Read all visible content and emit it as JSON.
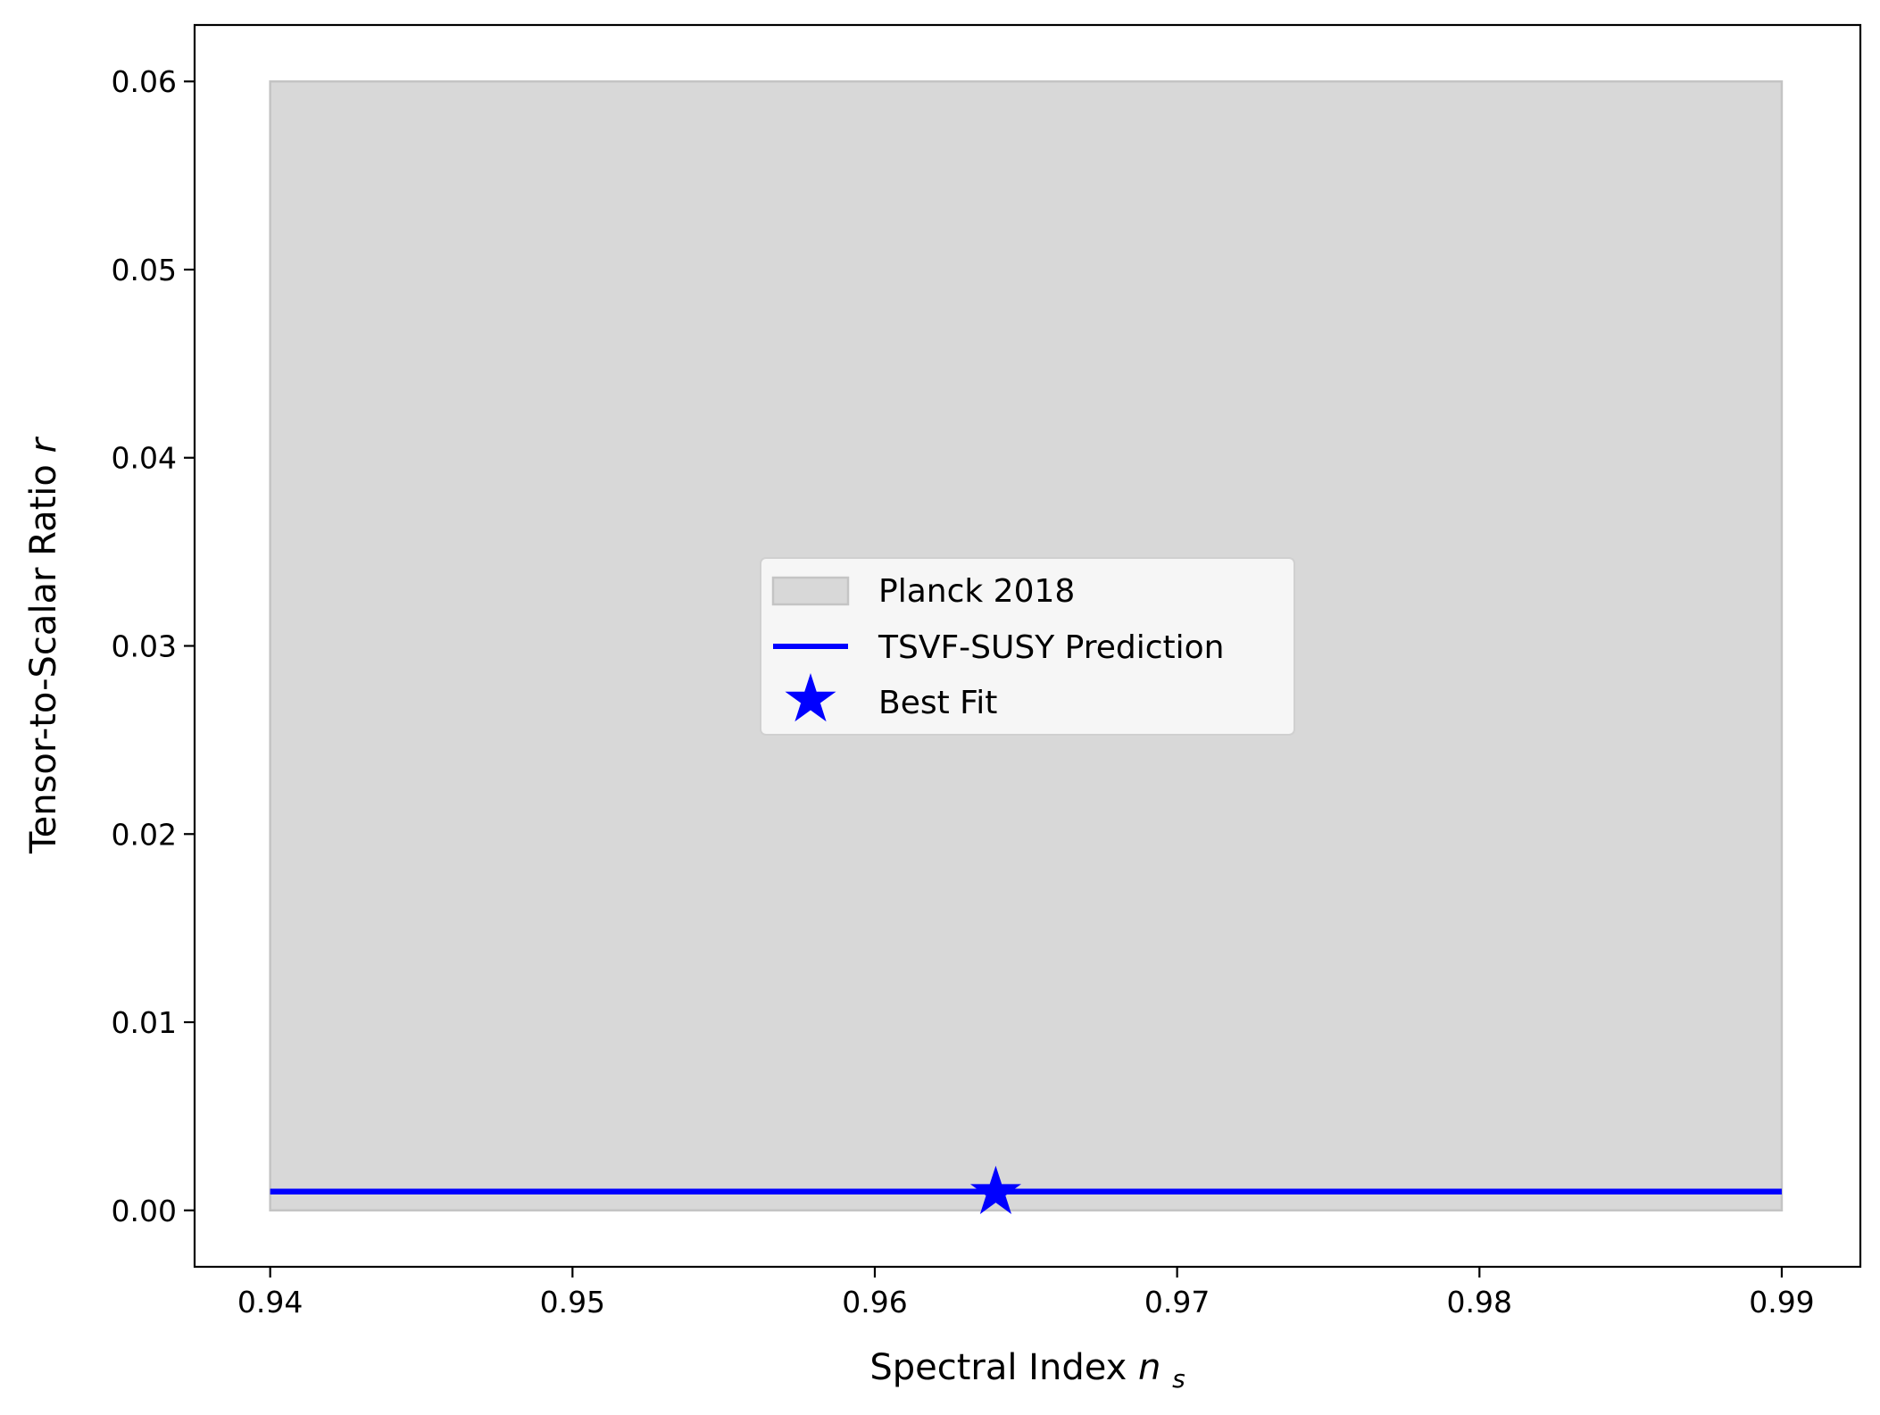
{
  "chart_data": {
    "type": "line",
    "xlabel": "Spectral Index",
    "xlabel_symbol": "n",
    "xlabel_subscript": "s",
    "ylabel": "Tensor-to-Scalar Ratio",
    "ylabel_symbol": "r",
    "xlim": [
      0.9375,
      0.9926
    ],
    "ylim": [
      -0.003,
      0.063
    ],
    "x_ticks": [
      0.94,
      0.95,
      0.96,
      0.97,
      0.98,
      0.99
    ],
    "x_tick_labels": [
      "0.94",
      "0.95",
      "0.96",
      "0.97",
      "0.98",
      "0.99"
    ],
    "y_ticks": [
      0.0,
      0.01,
      0.02,
      0.03,
      0.04,
      0.05,
      0.06
    ],
    "y_tick_labels": [
      "0.00",
      "0.01",
      "0.02",
      "0.03",
      "0.04",
      "0.05",
      "0.06"
    ],
    "grid": false,
    "legend_position": "center",
    "series": [
      {
        "name": "Planck 2018",
        "kind": "region",
        "x": [
          0.94,
          0.99
        ],
        "y": [
          0.0,
          0.06
        ],
        "color": "#d8d8d8",
        "edge_color": "#c4c4c4"
      },
      {
        "name": "TSVF-SUSY Prediction",
        "kind": "line",
        "x": [
          0.94,
          0.99
        ],
        "y": [
          0.001,
          0.001
        ],
        "color": "#0000ff"
      },
      {
        "name": "Best Fit",
        "kind": "point",
        "x": [
          0.964
        ],
        "y": [
          0.001
        ],
        "marker": "star",
        "color": "#0000ff"
      }
    ]
  }
}
